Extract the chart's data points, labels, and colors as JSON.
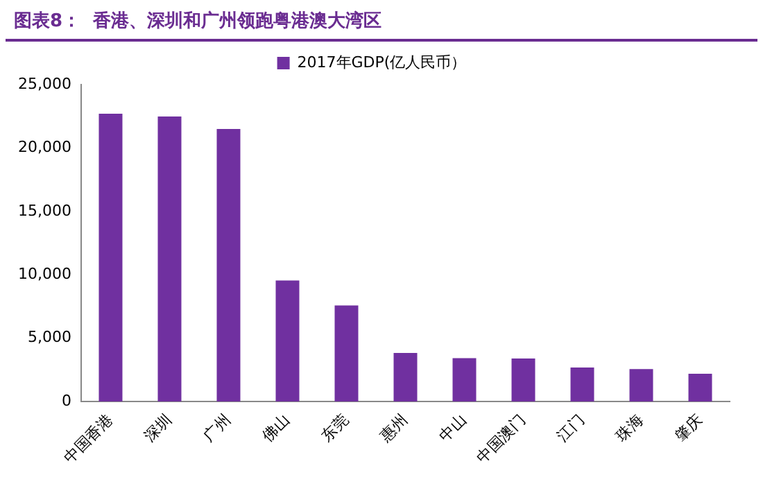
{
  "chart_data": {
    "type": "bar",
    "title": "图表8：  香港、深圳和广州领跑粤港澳大湾区",
    "categories": [
      "中国香港",
      "深圳",
      "广州",
      "佛山",
      "东莞",
      "惠州",
      "中山",
      "中国澳门",
      "江门",
      "珠海",
      "肇庆"
    ],
    "series": [
      {
        "name": "2017年GDP(亿人民币）",
        "color": "#7030a0",
        "values": [
          22700,
          22490,
          21500,
          9550,
          7580,
          3830,
          3430,
          3400,
          2690,
          2560,
          2200
        ]
      }
    ],
    "ylim": [
      0,
      25000
    ],
    "yticks": [
      {
        "value": 0,
        "label": "0"
      },
      {
        "value": 5000,
        "label": "5,000"
      },
      {
        "value": 10000,
        "label": "10,000"
      },
      {
        "value": 15000,
        "label": "15,000"
      },
      {
        "value": 20000,
        "label": "20,000"
      },
      {
        "value": 25000,
        "label": "25,000"
      }
    ],
    "grid": false,
    "legend": "top"
  }
}
